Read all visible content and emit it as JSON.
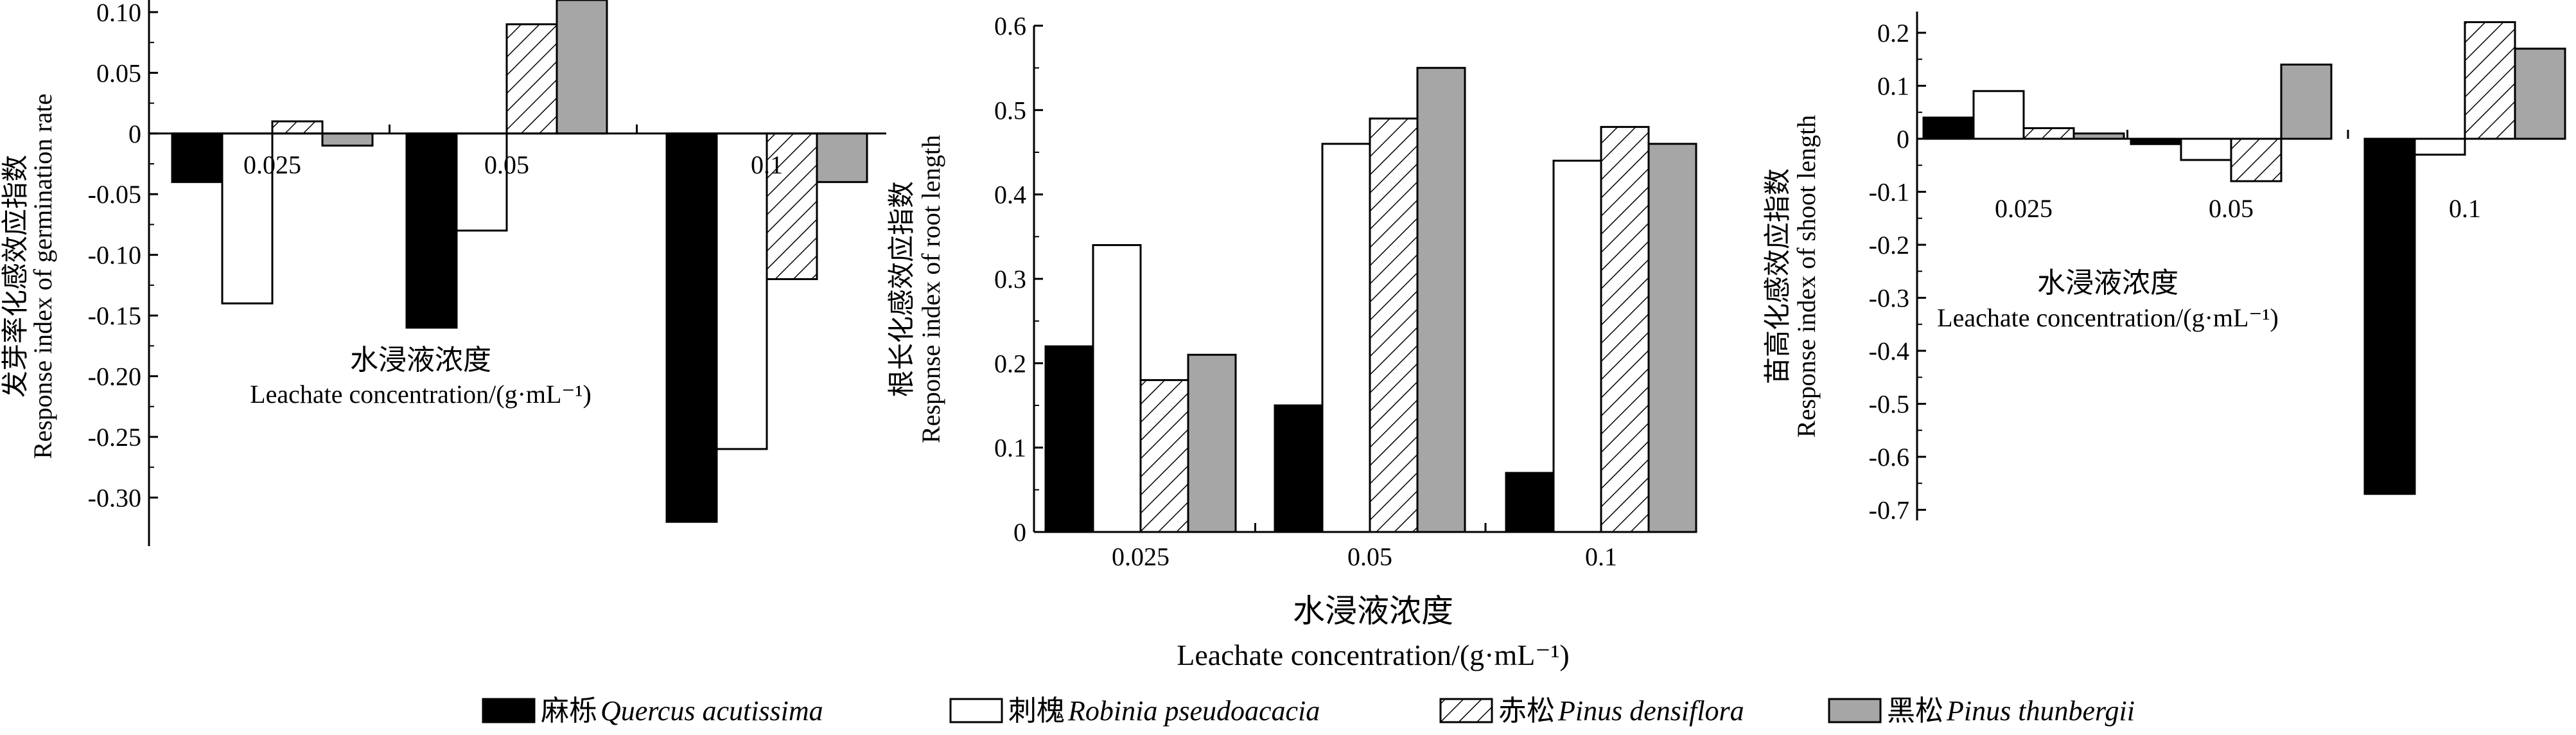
{
  "chart_data": [
    {
      "type": "bar",
      "categories": [
        "0.025",
        "0.05",
        "0.1"
      ],
      "series": [
        {
          "name": "麻栎 Quercus acutissima",
          "values": [
            -0.04,
            -0.16,
            -0.32
          ]
        },
        {
          "name": "刺槐 Robinia pseudoacacia",
          "values": [
            -0.14,
            -0.08,
            -0.26
          ]
        },
        {
          "name": "赤松 Pinus densiflora",
          "values": [
            0.01,
            0.09,
            -0.12
          ]
        },
        {
          "name": "黑松 Pinus thunbergii",
          "values": [
            -0.01,
            0.11,
            -0.04
          ]
        }
      ],
      "ylabel_cn": "发芽率化感效应指数",
      "ylabel_en": "Response index of germination rate",
      "xlabel_cn": "水浸液浓度",
      "xlabel_en": "Leachate concentration/(g·mL⁻¹)",
      "ylim": [
        -0.34,
        0.11
      ],
      "yticks": [
        "0.10",
        "0.05",
        "0",
        "-0.05",
        "-0.10",
        "-0.15",
        "-0.20",
        "-0.25",
        "-0.30"
      ],
      "yticks_values": [
        0.1,
        0.05,
        0,
        -0.05,
        -0.1,
        -0.15,
        -0.2,
        -0.25,
        -0.3
      ]
    },
    {
      "type": "bar",
      "categories": [
        "0.025",
        "0.05",
        "0.1"
      ],
      "series": [
        {
          "name": "麻栎 Quercus acutissima",
          "values": [
            0.22,
            0.15,
            0.07
          ]
        },
        {
          "name": "刺槐 Robinia pseudoacacia",
          "values": [
            0.34,
            0.46,
            0.44
          ]
        },
        {
          "name": "赤松 Pinus densiflora",
          "values": [
            0.18,
            0.49,
            0.48
          ]
        },
        {
          "name": "黑松 Pinus thunbergii",
          "values": [
            0.21,
            0.55,
            0.46
          ]
        }
      ],
      "ylabel_cn": "根长化感效应指数",
      "ylabel_en": "Response index of root length",
      "xlabel_cn": "水浸液浓度",
      "xlabel_en": "Leachate concentration/(g·mL⁻¹)",
      "ylim": [
        0,
        0.6
      ],
      "yticks": [
        "0.6",
        "0.5",
        "0.4",
        "0.3",
        "0.2",
        "0.1",
        "0"
      ],
      "yticks_values": [
        0.6,
        0.5,
        0.4,
        0.3,
        0.2,
        0.1,
        0
      ]
    },
    {
      "type": "bar",
      "categories": [
        "0.025",
        "0.05",
        "0.1"
      ],
      "series": [
        {
          "name": "麻栎 Quercus acutissima",
          "values": [
            0.04,
            -0.01,
            -0.67
          ]
        },
        {
          "name": "刺槐 Robinia pseudoacacia",
          "values": [
            0.09,
            -0.04,
            -0.03
          ]
        },
        {
          "name": "赤松 Pinus densiflora",
          "values": [
            0.02,
            -0.08,
            0.22
          ]
        },
        {
          "name": "黑松 Pinus thunbergii",
          "values": [
            0.01,
            0.14,
            0.17
          ]
        }
      ],
      "ylabel_cn": "苗高化感效应指数",
      "ylabel_en": "Response index of shoot length",
      "xlabel_cn": "水浸液浓度",
      "xlabel_en": "Leachate concentration/(g·mL⁻¹)",
      "ylim": [
        -0.72,
        0.24
      ],
      "yticks": [
        "0.2",
        "0.1",
        "0",
        "-0.1",
        "-0.2",
        "-0.3",
        "-0.4",
        "-0.5",
        "-0.6",
        "-0.7"
      ],
      "yticks_values": [
        0.2,
        0.1,
        0,
        -0.1,
        -0.2,
        -0.3,
        -0.4,
        -0.5,
        -0.6,
        -0.7
      ]
    }
  ],
  "legend": {
    "position": "bottom",
    "items": [
      {
        "cn": "麻栎",
        "en": "Quercus acutissima",
        "style": "black"
      },
      {
        "cn": "刺槐",
        "en": "Robinia pseudoacacia",
        "style": "white"
      },
      {
        "cn": "赤松",
        "en": "Pinus densiflora",
        "style": "hatch"
      },
      {
        "cn": "黑松",
        "en": "Pinus thunbergii",
        "style": "gray"
      }
    ]
  },
  "colors": {
    "black": "#000000",
    "white": "#ffffff",
    "gray": "#a6a6a6",
    "hatch": "#000000"
  }
}
